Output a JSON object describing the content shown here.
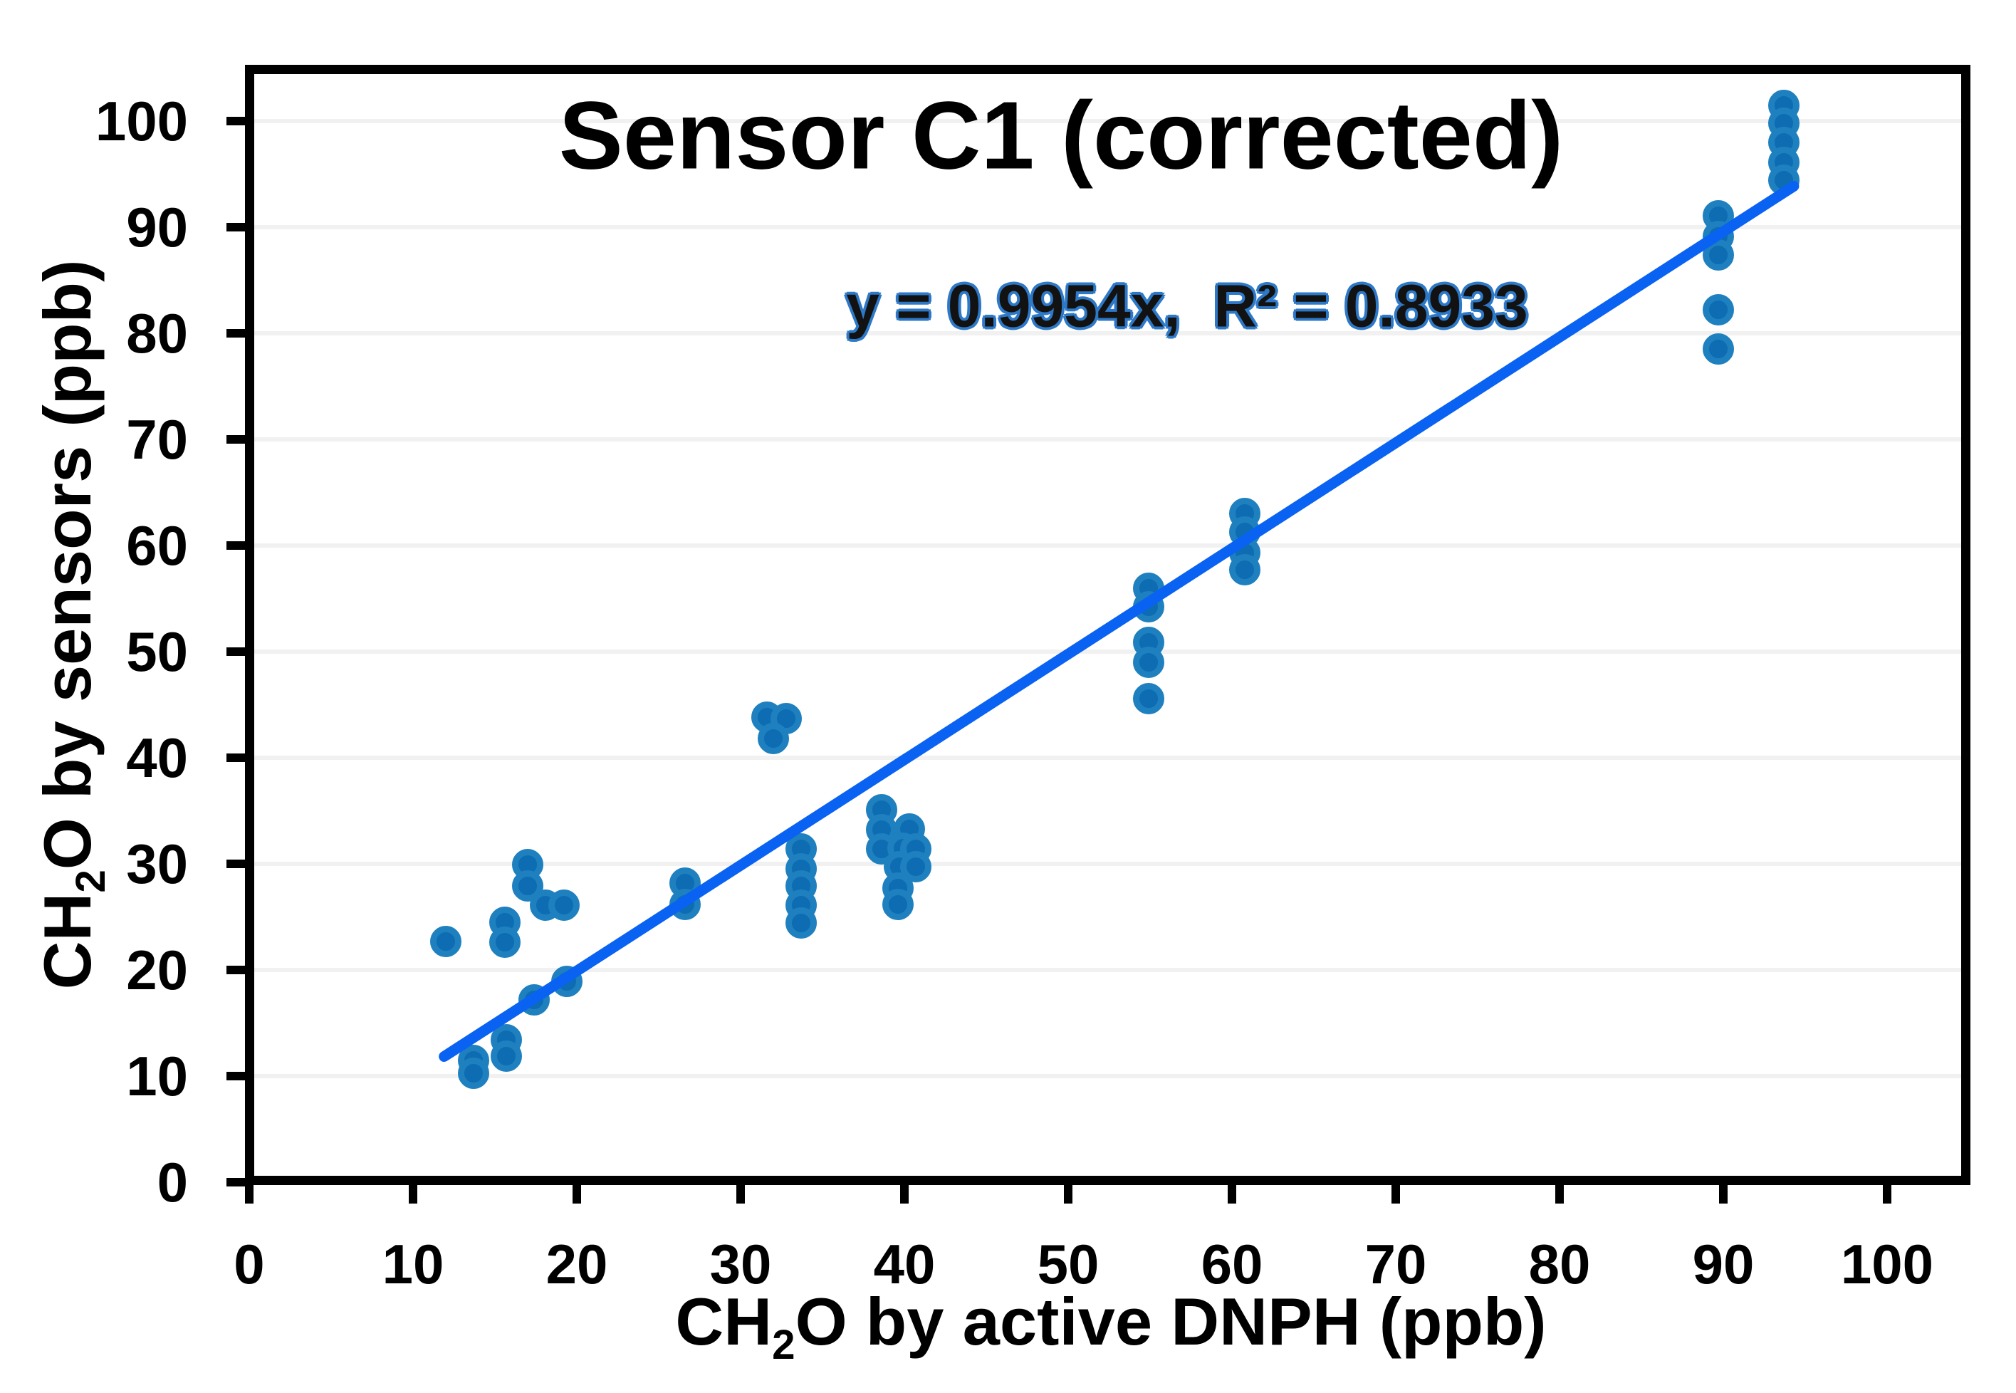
{
  "chart_data": {
    "type": "scatter",
    "title": "Sensor C1 (corrected)",
    "equation": "y = 0.9954x,  R² = 0.8933",
    "x_axis": {
      "title": "CH2O by active DNPH (ppb)",
      "title_prefix": "CH",
      "title_sub": "2",
      "title_suffix": "O by active DNPH (ppb)",
      "min": 0,
      "max": 105,
      "ticks": [
        0,
        10,
        20,
        30,
        40,
        50,
        60,
        70,
        80,
        90,
        100
      ]
    },
    "y_axis": {
      "title": "CH2O by sensors (ppb)",
      "title_prefix": "CH",
      "title_sub": "2",
      "title_suffix": "O by sensors (ppb)",
      "min": 0,
      "max": 105,
      "ticks": [
        0,
        10,
        20,
        30,
        40,
        50,
        60,
        70,
        80,
        90,
        100
      ]
    },
    "grid": "horizontal-only",
    "legend": "none",
    "points": [
      [
        12.0,
        22.7
      ],
      [
        13.7,
        11.5
      ],
      [
        13.7,
        10.3
      ],
      [
        15.6,
        24.5
      ],
      [
        15.6,
        22.6
      ],
      [
        15.7,
        13.4
      ],
      [
        15.7,
        11.9
      ],
      [
        17.0,
        29.9
      ],
      [
        17.0,
        27.9
      ],
      [
        17.4,
        17.2
      ],
      [
        18.1,
        26.1
      ],
      [
        19.2,
        26.1
      ],
      [
        19.4,
        18.9
      ],
      [
        26.6,
        28.2
      ],
      [
        26.6,
        26.2
      ],
      [
        31.6,
        43.8
      ],
      [
        32.8,
        43.7
      ],
      [
        32.0,
        41.8
      ],
      [
        33.7,
        31.4
      ],
      [
        33.7,
        29.5
      ],
      [
        33.7,
        27.9
      ],
      [
        33.7,
        26.1
      ],
      [
        33.7,
        24.4
      ],
      [
        38.6,
        35.1
      ],
      [
        38.6,
        33.2
      ],
      [
        40.3,
        33.3
      ],
      [
        38.6,
        31.4
      ],
      [
        39.9,
        31.5
      ],
      [
        40.7,
        31.4
      ],
      [
        39.7,
        29.7
      ],
      [
        40.7,
        29.7
      ],
      [
        39.6,
        27.7
      ],
      [
        39.6,
        26.2
      ],
      [
        54.9,
        56.0
      ],
      [
        54.9,
        54.2
      ],
      [
        54.9,
        50.9
      ],
      [
        54.9,
        49.0
      ],
      [
        54.9,
        45.6
      ],
      [
        60.8,
        63.0
      ],
      [
        60.8,
        61.3
      ],
      [
        60.8,
        59.3
      ],
      [
        60.8,
        57.7
      ],
      [
        89.7,
        91.1
      ],
      [
        89.7,
        89.1
      ],
      [
        89.7,
        87.4
      ],
      [
        89.7,
        82.2
      ],
      [
        89.7,
        78.5
      ],
      [
        93.7,
        101.5
      ],
      [
        93.7,
        99.8
      ],
      [
        93.7,
        98.0
      ],
      [
        93.7,
        96.1
      ],
      [
        93.7,
        94.4
      ]
    ],
    "trendline": {
      "slope": 0.9954,
      "intercept": 0,
      "x_start": 11.9,
      "x_end": 94.3,
      "r_squared": 0.8933
    },
    "colors": {
      "marker_fill": "#0d6cb2",
      "marker_border": "#1e80bf",
      "trendline": "#0a62f2",
      "gridline": "#f1f1f1",
      "axis": "#000000",
      "equation_core": "#121212",
      "equation_outline": "#2e79c7"
    }
  }
}
